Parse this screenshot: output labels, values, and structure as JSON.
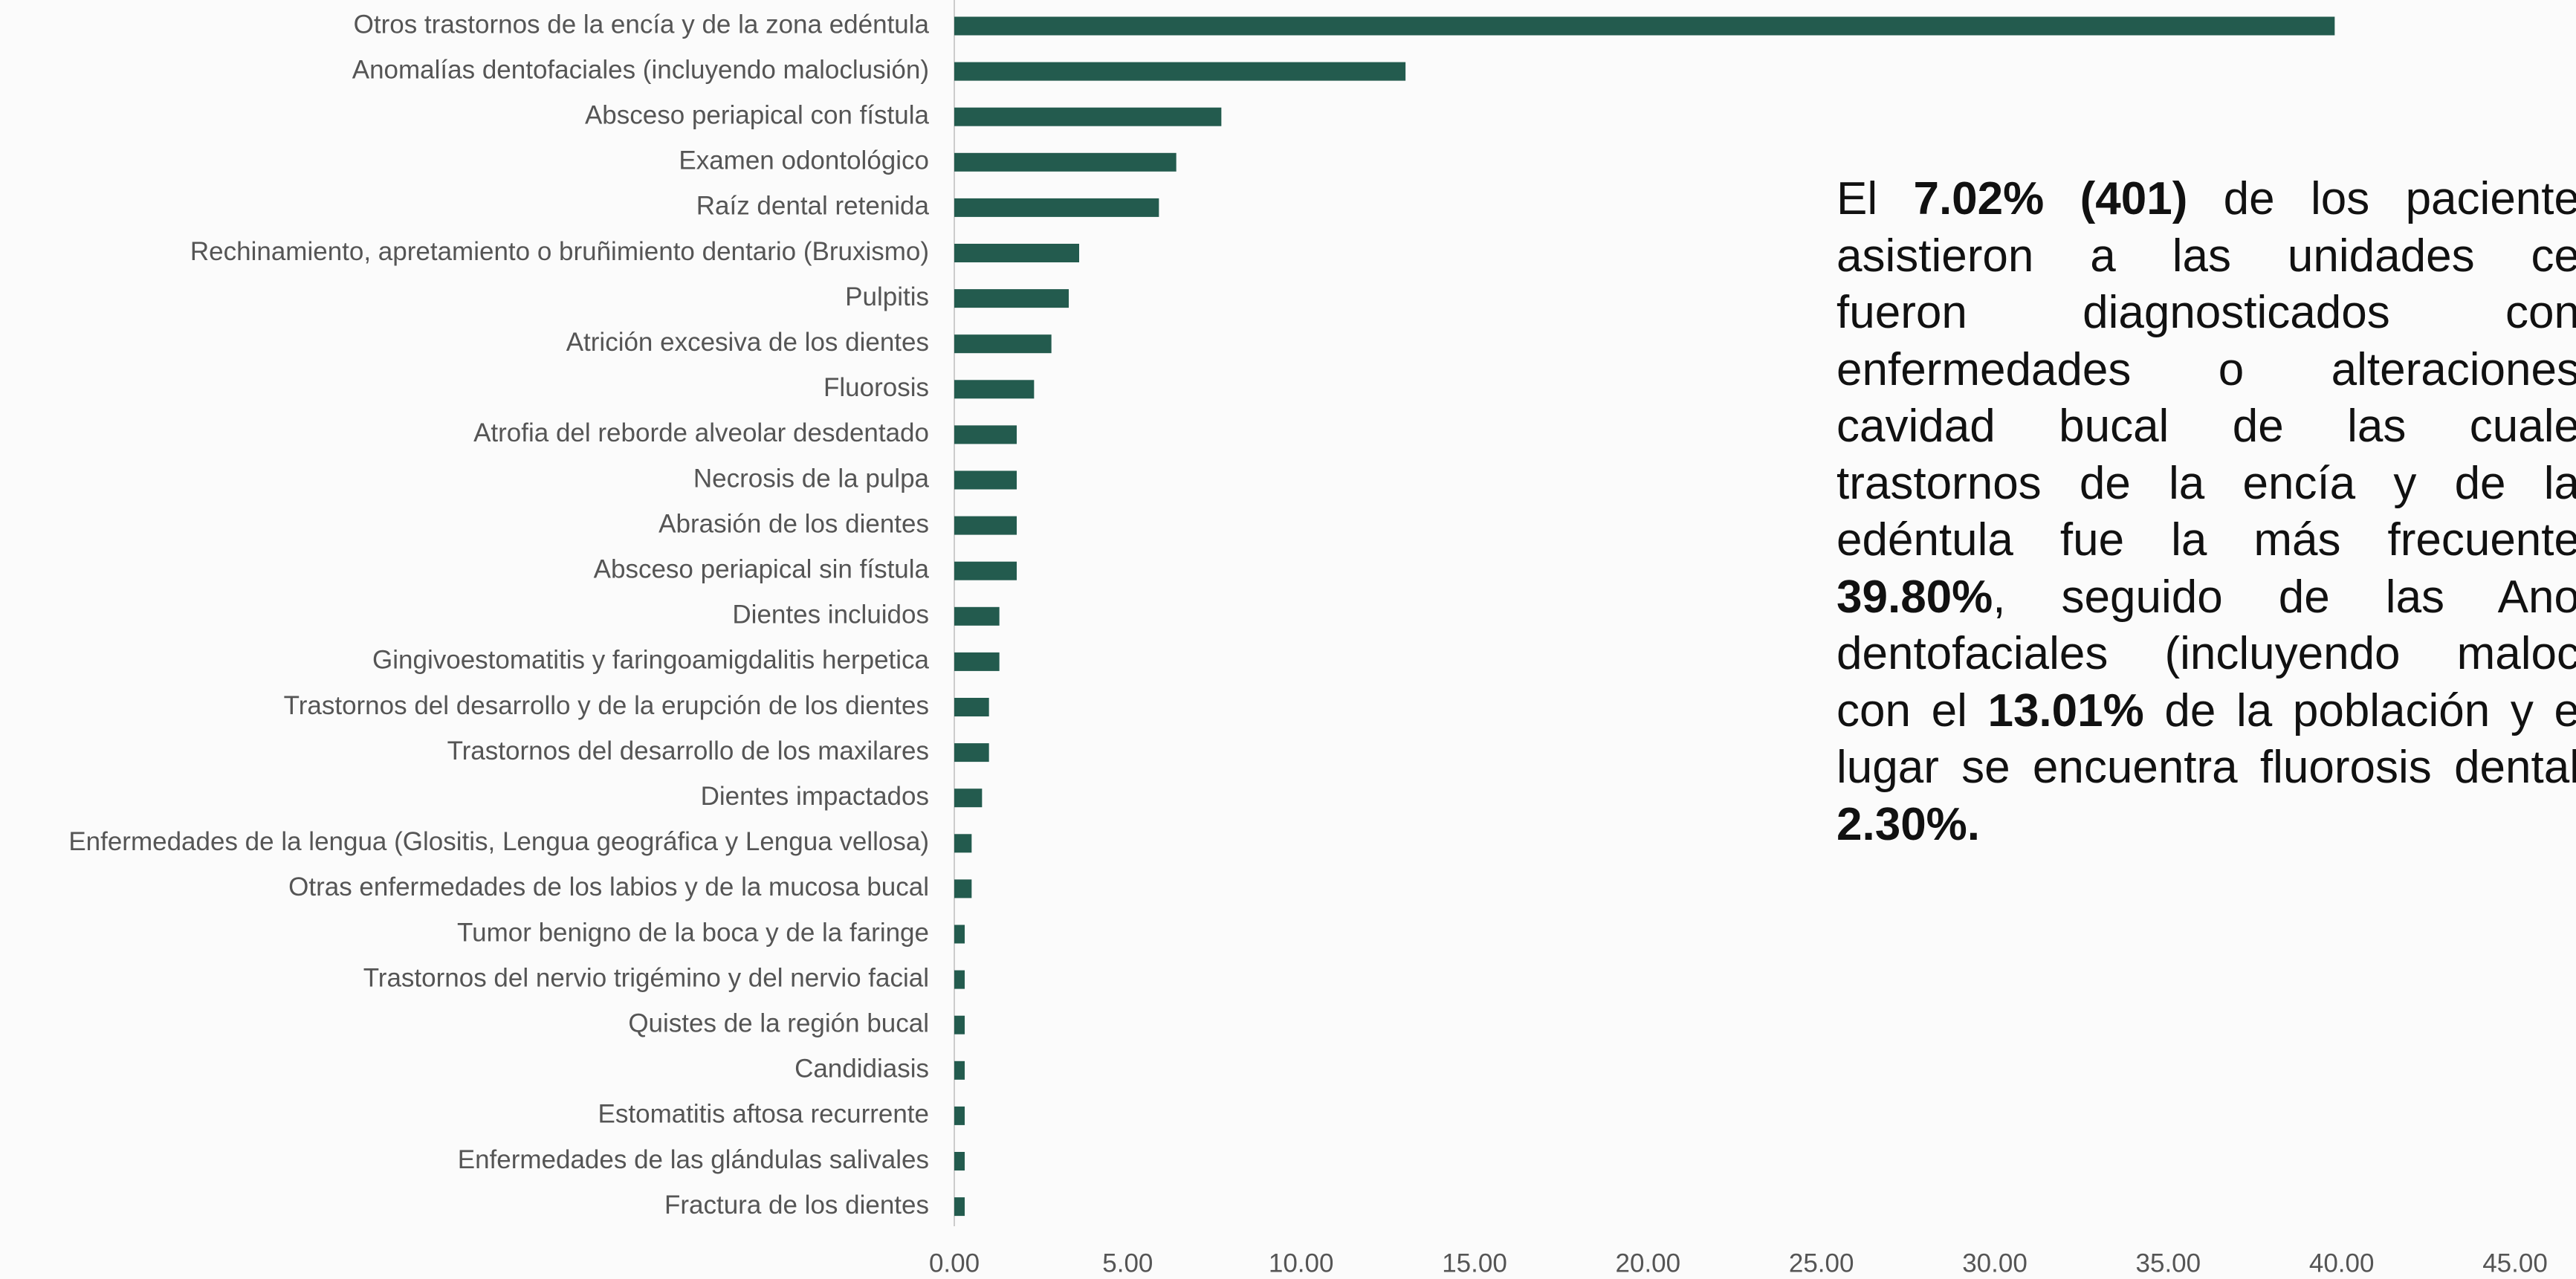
{
  "chart_data": {
    "type": "barh",
    "categories": [
      "Otros trastornos de la encía y de la zona edéntula",
      "Anomalías dentofaciales (incluyendo maloclusión)",
      "Absceso periapical con fístula",
      "Examen odontológico",
      "Raíz dental retenida",
      "Rechinamiento, apretamiento o bruñimiento dentario (Bruxismo)",
      "Pulpitis",
      "Atrición excesiva de los dientes",
      "Fluorosis",
      "Atrofia del reborde alveolar desdentado",
      "Necrosis de la pulpa",
      "Abrasión de los dientes",
      "Absceso periapical sin fístula",
      "Dientes incluidos",
      "Gingivoestomatitis y faringoamigdalitis herpetica",
      "Trastornos del desarrollo y de la erupción de los dientes",
      "Trastornos del desarrollo de los maxilares",
      "Dientes impactados",
      "Enfermedades de la lengua (Glositis, Lengua geográfica y Lengua vellosa)",
      "Otras enfermedades de los labios y de la mucosa bucal",
      "Tumor benigno de la boca y de la faringe",
      "Trastornos del nervio trigémino y del nervio facial",
      "Quistes de la región bucal",
      "Candidiasis",
      "Estomatitis aftosa recurrente",
      "Enfermedades de las glándulas salivales",
      "Fractura de los dientes"
    ],
    "values": [
      39.8,
      13.01,
      7.7,
      6.4,
      5.9,
      3.6,
      3.3,
      2.8,
      2.3,
      1.8,
      1.8,
      1.8,
      1.8,
      1.3,
      1.3,
      1.0,
      1.0,
      0.8,
      0.5,
      0.5,
      0.3,
      0.3,
      0.3,
      0.3,
      0.3,
      0.3,
      0.3
    ],
    "color": "#235b4e",
    "xlim": [
      0,
      45
    ],
    "xticks": [
      {
        "value": 0,
        "label": "0.00"
      },
      {
        "value": 5,
        "label": "5.00"
      },
      {
        "value": 10,
        "label": "10.00"
      },
      {
        "value": 15,
        "label": "15.00"
      },
      {
        "value": 20,
        "label": "20.00"
      },
      {
        "value": 25,
        "label": "25.00"
      },
      {
        "value": 30,
        "label": "30.00"
      },
      {
        "value": 35,
        "label": "35.00"
      },
      {
        "value": 40,
        "label": "40.00"
      },
      {
        "value": 45,
        "label": "45.00"
      }
    ]
  },
  "annotation": {
    "lines": [
      [
        {
          "text": "El "
        },
        {
          "text": "7.02% (401)",
          "bold": true
        },
        {
          "text": " de los paciente"
        }
      ],
      [
        {
          "text": "asistieron a las unidades ce"
        }
      ],
      [
        {
          "text": "fueron diagnosticados con"
        }
      ],
      [
        {
          "text": "enfermedades o alteraciones"
        }
      ],
      [
        {
          "text": "cavidad bucal de las cuale"
        }
      ],
      [
        {
          "text": "trastornos de la encía y de la"
        }
      ],
      [
        {
          "text": "edéntula fue la más frecuente"
        }
      ],
      [
        {
          "text": "39.80%",
          "bold": true
        },
        {
          "text": ", seguido de las Ano"
        }
      ],
      [
        {
          "text": "dentofaciales (incluyendo maloc"
        }
      ],
      [
        {
          "text": "con el "
        },
        {
          "text": "13.01%",
          "bold": true
        },
        {
          "text": " de la población y e"
        }
      ],
      [
        {
          "text": "lugar se encuentra fluorosis dental"
        }
      ],
      [
        {
          "text": "2.30%.",
          "bold": true
        }
      ]
    ]
  }
}
